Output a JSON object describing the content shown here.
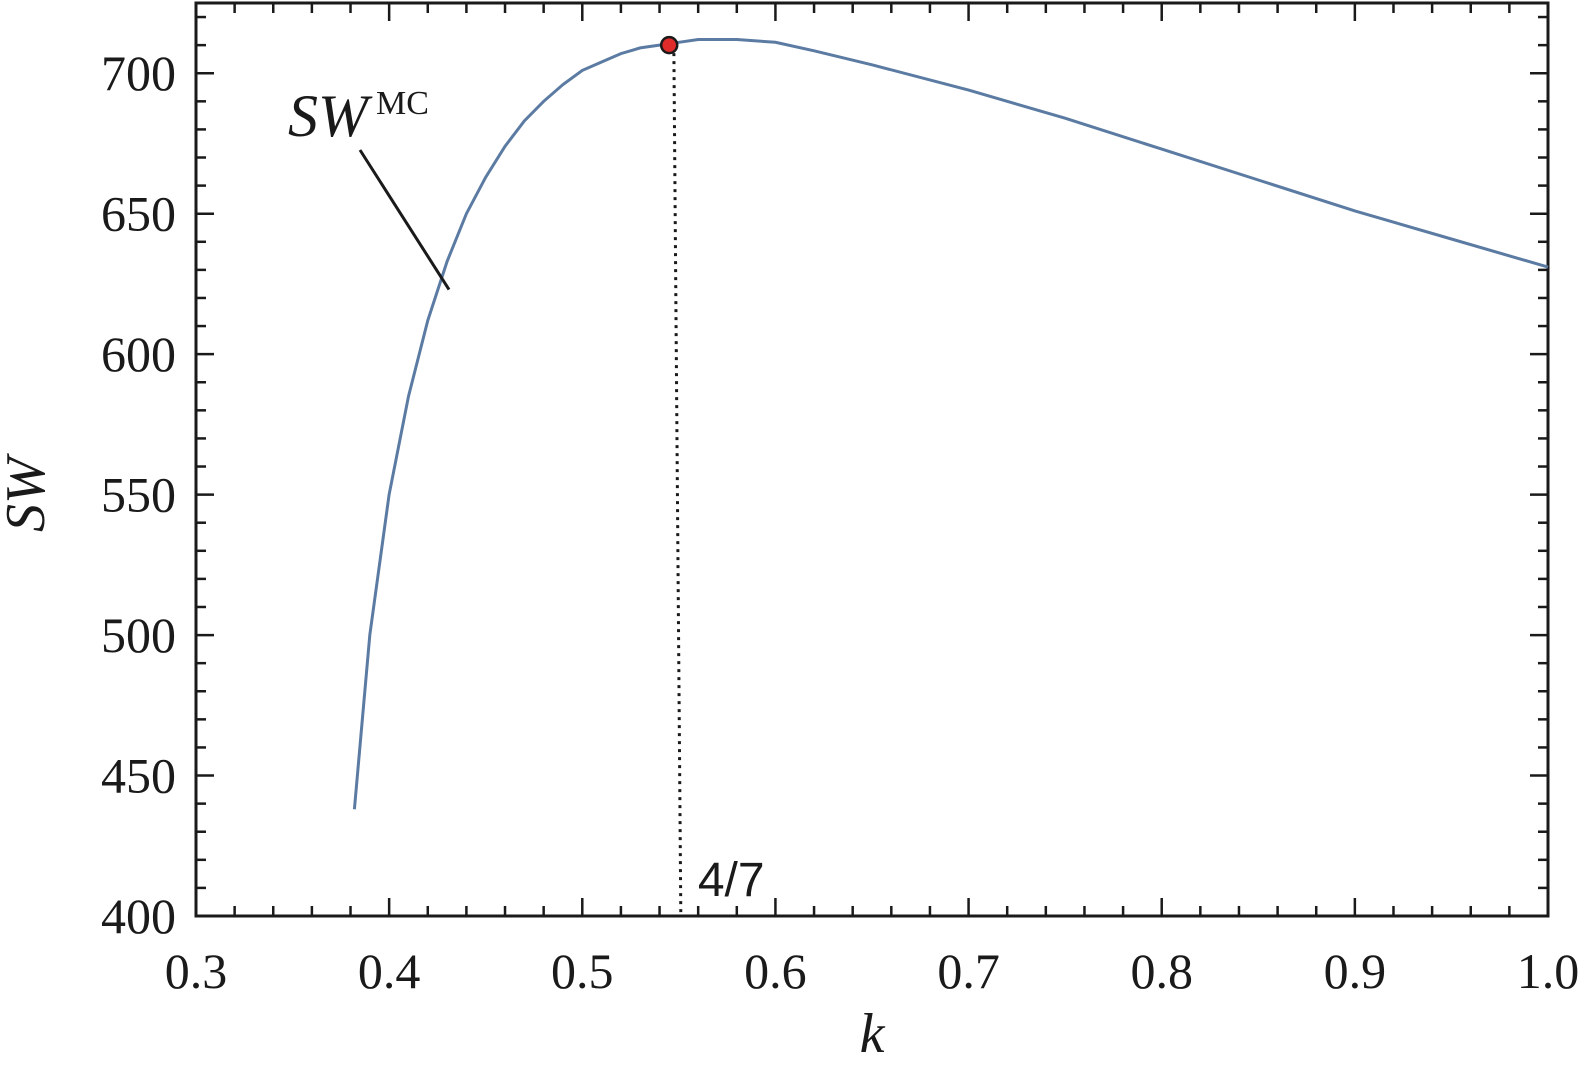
{
  "chart_data": {
    "type": "line",
    "xlabel": "k",
    "ylabel": "SW",
    "xlim": [
      0.3,
      1.0
    ],
    "ylim": [
      400,
      725
    ],
    "x_ticks": [
      0.3,
      0.4,
      0.5,
      0.6,
      0.7,
      0.8,
      0.9,
      1.0
    ],
    "x_tick_labels": [
      "0.3",
      "0.4",
      "0.5",
      "0.6",
      "0.7",
      "0.8",
      "0.9",
      "1.0"
    ],
    "y_ticks": [
      400,
      450,
      500,
      550,
      600,
      650,
      700
    ],
    "y_tick_labels": [
      "400",
      "450",
      "500",
      "550",
      "600",
      "650",
      "700"
    ],
    "grid": false,
    "series": [
      {
        "name": "SW^MC",
        "label_main": "SW",
        "label_sup": "MC",
        "color": "#5b7ba3",
        "x": [
          0.382,
          0.39,
          0.4,
          0.41,
          0.42,
          0.43,
          0.44,
          0.45,
          0.46,
          0.47,
          0.48,
          0.49,
          0.5,
          0.51,
          0.52,
          0.53,
          0.54,
          0.55,
          0.56,
          0.57,
          0.58,
          0.6,
          0.62,
          0.65,
          0.7,
          0.75,
          0.8,
          0.85,
          0.9,
          0.95,
          1.0
        ],
        "y": [
          438,
          500,
          550,
          585,
          612,
          633,
          650,
          663,
          674,
          683,
          690,
          696,
          701,
          704,
          707,
          709,
          710,
          711,
          712,
          712,
          712,
          711,
          708,
          703,
          694,
          684,
          673,
          662,
          651,
          641,
          631
        ]
      }
    ],
    "highlight_point": {
      "x": 0.545,
      "y": 710,
      "color": "#e02b2b"
    },
    "vline": {
      "x": 0.5505,
      "label": "4/7"
    }
  }
}
